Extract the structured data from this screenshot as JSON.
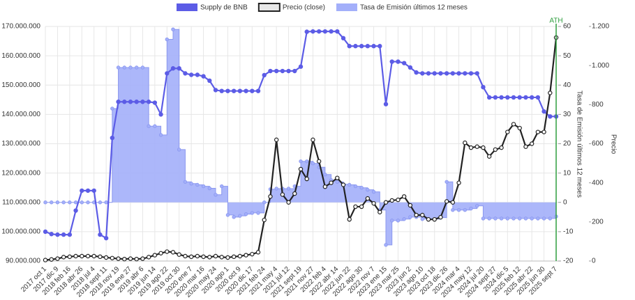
{
  "chart_data": {
    "type": "combo",
    "y2_label": "Tasa de Emisión últimos 12 meses",
    "y3_label": "Precio",
    "annotations": [
      {
        "text": "ATH",
        "color": "#2e9e3e"
      }
    ],
    "categories": [
      "2017 oct 1",
      null,
      "2017 dic 9",
      null,
      "2018 feb 16",
      null,
      "2018 abr 26",
      null,
      "2018 jul 4",
      null,
      "2018 sept 11",
      null,
      "2018 nov 19",
      null,
      "2019 ene 27",
      null,
      "2019 abr 6",
      null,
      "2019 jun 14",
      null,
      "2019 ago 22",
      null,
      "2019 oct 30",
      null,
      "2020 ene 7",
      null,
      "2020 mar 16",
      null,
      "2020 may 24",
      null,
      "2020 ago 1",
      null,
      "2020 oct 9",
      null,
      "2020 dic 17",
      null,
      "2021 feb 24",
      null,
      "2021 may 4",
      null,
      "2021 jul 12",
      null,
      "2021 sept 19",
      null,
      "2021 nov 27",
      null,
      "2022 feb 4",
      null,
      "2022 abr 14",
      null,
      "2022 jun 22",
      null,
      "2022 ago 30",
      null,
      "2022 nov 7",
      null,
      "2023 ene 15",
      null,
      "2023 mar 25",
      null,
      "2023 jun 2",
      null,
      "2023 ago 10",
      null,
      "2023 oct 18",
      null,
      "2023 dic 26",
      null,
      "2024 mar 4",
      null,
      "2024 may 12",
      null,
      "2024 jul 20",
      null,
      "2024 sept 27",
      null,
      "2024 dic 5",
      null,
      "2025 feb 12",
      null,
      "2025 abr 22",
      null,
      "2025 jun 30",
      null,
      "2025 sept 7"
    ],
    "series": [
      {
        "name": "Supply de BNB",
        "color": "#5c5ce6",
        "axis": "y",
        "values": [
          100000000,
          99200000,
          99000000,
          99000000,
          99000000,
          107200000,
          114000000,
          114000000,
          114000000,
          99000000,
          97800000,
          132000000,
          144300000,
          144300000,
          144300000,
          144300000,
          144300000,
          144300000,
          144000000,
          140000000,
          154000000,
          155700000,
          155700000,
          154000000,
          153500000,
          153500000,
          153000000,
          151500000,
          148300000,
          148000000,
          148000000,
          148000000,
          148000000,
          148000000,
          148000000,
          148000000,
          153400000,
          154800000,
          154800000,
          154800000,
          154800000,
          154800000,
          156300000,
          168200000,
          168300000,
          168300000,
          168300000,
          168300000,
          168300000,
          166000000,
          163300000,
          163300000,
          163300000,
          163300000,
          163300000,
          163300000,
          143500000,
          158000000,
          158000000,
          157500000,
          156000000,
          154300000,
          154000000,
          154000000,
          154000000,
          154000000,
          154000000,
          154000000,
          154000000,
          154000000,
          154000000,
          154000000,
          149300000,
          145800000,
          145800000,
          145800000,
          145800000,
          145800000,
          145800000,
          145800000,
          145800000,
          145800000,
          141000000,
          139300000,
          139300000
        ]
      },
      {
        "name": "Precio (close)",
        "color": "#222222",
        "axis": "y3",
        "values": [
          5,
          8,
          12,
          20,
          22,
          25,
          25,
          25,
          25,
          22,
          18,
          15,
          12,
          10,
          12,
          10,
          12,
          20,
          30,
          40,
          48,
          45,
          33,
          25,
          22,
          25,
          22,
          20,
          25,
          20,
          18,
          22,
          25,
          30,
          35,
          45,
          210,
          330,
          620,
          340,
          300,
          345,
          470,
          420,
          620,
          510,
          380,
          400,
          425,
          390,
          213,
          278,
          278,
          320,
          295,
          250,
          300,
          310,
          313,
          330,
          285,
          235,
          235,
          213,
          213,
          224,
          305,
          300,
          400,
          605,
          580,
          585,
          580,
          535,
          570,
          580,
          660,
          700,
          680,
          585,
          600,
          660,
          660,
          860,
          1143
        ]
      },
      {
        "name": "Tasa de Emisión últimos 12 meses",
        "color": "#a3affa",
        "axis": "y2",
        "values": [
          0,
          0,
          0,
          0,
          0,
          0,
          0,
          0,
          0,
          0,
          0,
          32,
          46,
          46,
          46,
          46,
          46,
          26,
          26,
          23,
          55.6,
          59,
          18,
          7,
          6.4,
          6,
          5.5,
          4.8,
          2.6,
          5.5,
          -4.3,
          -5,
          -4.6,
          -4,
          -3.6,
          -3.6,
          0,
          4.5,
          4.7,
          4.7,
          4.7,
          5.5,
          14,
          14,
          13.3,
          12,
          9.5,
          7.6,
          7,
          6.2,
          6,
          5.5,
          5,
          4.3,
          3.6,
          -2.6,
          -14.5,
          -6.2,
          -6.2,
          -5.7,
          -5,
          -5,
          -5.7,
          -5.7,
          -5.7,
          -5.2,
          7,
          -2.6,
          -2.6,
          -2.6,
          -2.1,
          -1.2,
          -5.5,
          -5.5,
          -5.5,
          -5.5,
          -5.5,
          -5.5,
          -5.5,
          -5.5,
          -5.5,
          -5.5,
          -5.5,
          -5.5,
          -4.8
        ]
      }
    ],
    "ylim": [
      90000000,
      170000000
    ],
    "yticks": [
      {
        "value": 90000000,
        "label": "90.000.000"
      },
      {
        "value": 100000000,
        "label": "100.000.000"
      },
      {
        "value": 110000000,
        "label": "110.000.000"
      },
      {
        "value": 120000000,
        "label": "120.000.000"
      },
      {
        "value": 130000000,
        "label": "130.000.000"
      },
      {
        "value": 140000000,
        "label": "140.000.000"
      },
      {
        "value": 150000000,
        "label": "150.000.000"
      },
      {
        "value": 160000000,
        "label": "160.000.000"
      },
      {
        "value": 170000000,
        "label": "170.000.000"
      }
    ],
    "y2lim": [
      -20,
      60
    ],
    "y2ticks": [
      -20,
      -10,
      0,
      10,
      20,
      30,
      40,
      50,
      60
    ],
    "y3lim": [
      0,
      1200
    ],
    "y3ticks": [
      0,
      200,
      400,
      600,
      800,
      {
        "value": 1000,
        "label": "1.000"
      },
      {
        "value": 1200,
        "label": "1.200"
      }
    ],
    "grid": true
  }
}
